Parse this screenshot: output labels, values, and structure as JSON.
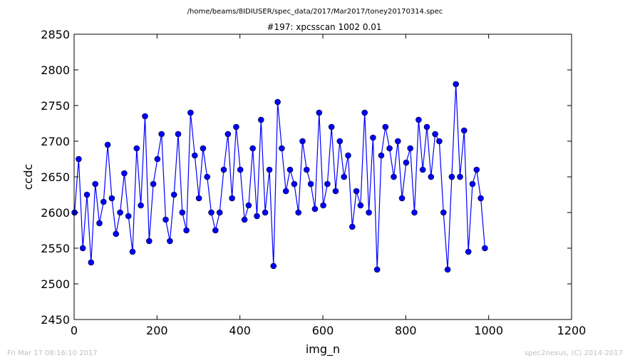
{
  "footer": {
    "left": "Fri Mar 17 08:16:10 2017",
    "right": "spec2nexus, (C) 2014-2017"
  },
  "colors": {
    "series": "#0000ff",
    "axes": "#000000",
    "background": "#ffffff",
    "footer": "#c0c0c0"
  },
  "chart_data": {
    "type": "line",
    "marker": "circle",
    "suptitle": "/home/beams/8IDIUSER/spec_data/2017/Mar2017/toney20170314.spec",
    "title": "#197: xpcsscan 1002 0.01",
    "xlabel": "img_n",
    "ylabel": "ccdc",
    "xlim": [
      0,
      1200
    ],
    "ylim": [
      2450,
      2850
    ],
    "xticks": [
      0,
      200,
      400,
      600,
      800,
      1000,
      1200
    ],
    "yticks": [
      2450,
      2500,
      2550,
      2600,
      2650,
      2700,
      2750,
      2800,
      2850
    ],
    "grid": false,
    "legend": "none",
    "series": [
      {
        "x_start": 1,
        "x_step": 10,
        "values": [
          2600,
          2675,
          2550,
          2625,
          2530,
          2640,
          2585,
          2615,
          2695,
          2620,
          2570,
          2600,
          2655,
          2595,
          2545,
          2690,
          2610,
          2735,
          2560,
          2640,
          2675,
          2710,
          2590,
          2560,
          2625,
          2710,
          2600,
          2575,
          2740,
          2680,
          2620,
          2690,
          2650,
          2600,
          2575,
          2600,
          2660,
          2710,
          2620,
          2720,
          2660,
          2590,
          2610,
          2690,
          2595,
          2730,
          2600,
          2660,
          2525,
          2755,
          2690,
          2630,
          2660,
          2640,
          2600,
          2700,
          2660,
          2640,
          2605,
          2740,
          2610,
          2640,
          2720,
          2630,
          2700,
          2650,
          2680,
          2580,
          2630,
          2610,
          2740,
          2600,
          2705,
          2520,
          2680,
          2720,
          2690,
          2650,
          2700,
          2620,
          2670,
          2690,
          2600,
          2730,
          2660,
          2720,
          2650,
          2710,
          2700,
          2600,
          2520,
          2650,
          2780,
          2650,
          2715,
          2545,
          2640,
          2660,
          2620,
          2550
        ]
      }
    ]
  }
}
